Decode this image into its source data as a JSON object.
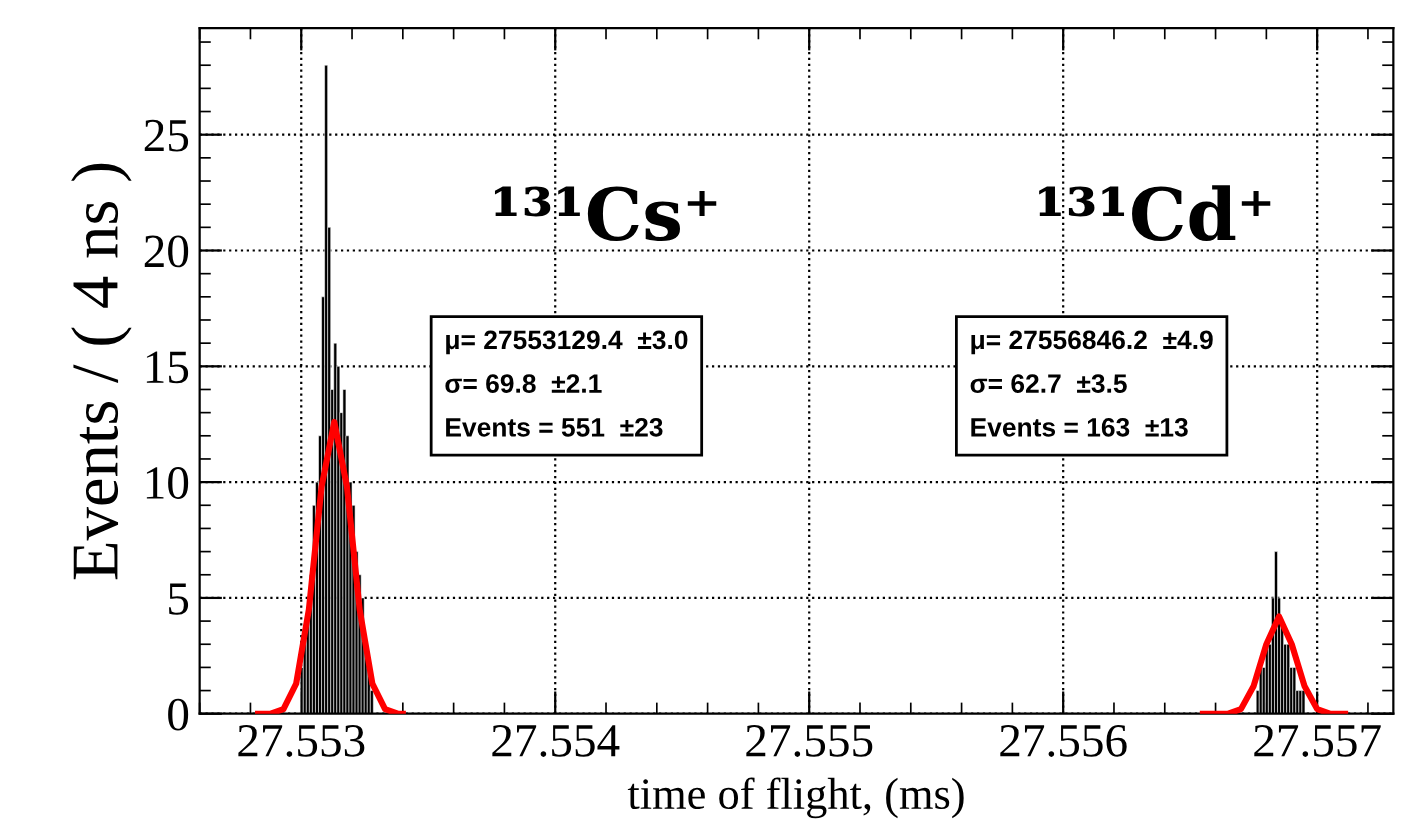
{
  "chart_data": {
    "type": "histogram",
    "xlabel": "time of flight, (ms)",
    "ylabel": "Events / ( 4 ns )",
    "xlim": [
      27.5526,
      27.5573
    ],
    "ylim": [
      0,
      29.6
    ],
    "xticks": [
      27.553,
      27.554,
      27.555,
      27.556,
      27.557
    ],
    "yticks": [
      0,
      5,
      10,
      15,
      20,
      25
    ],
    "grid": true,
    "legend": false,
    "annotations": [
      "¹³¹Cs⁺",
      "¹³¹Cd⁺",
      "μ= 27553129.4  ±3.0",
      "σ= 69.8  ±2.1",
      "Events = 551  ±23",
      "μ= 27556846.2  ±4.9",
      "σ= 62.7  ±3.5",
      "Events = 163  ±13"
    ],
    "series": [
      {
        "type": "histogram",
        "color": "#000000",
        "bins": [
          27.552996,
          27.553008,
          27.55302,
          27.553032,
          27.553044,
          27.553056,
          27.553068,
          27.55308,
          27.553092,
          27.553104,
          27.553116,
          27.553128,
          27.55314,
          27.553152,
          27.553164,
          27.553176,
          27.553188,
          27.5532,
          27.553212,
          27.553224,
          27.553236,
          27.553248,
          27.55326,
          27.553272,
          27.553284
        ],
        "values": [
          2,
          3,
          4,
          6,
          9,
          10,
          12,
          18,
          28,
          21,
          14,
          16,
          15,
          13,
          14,
          12,
          10,
          9,
          7,
          6,
          5,
          3,
          2,
          1
        ]
      },
      {
        "type": "histogram",
        "color": "#000000",
        "bins": [
          27.55676,
          27.556772,
          27.556784,
          27.556796,
          27.556808,
          27.55682,
          27.556832,
          27.556844,
          27.556856,
          27.556868,
          27.55688,
          27.556892,
          27.556904,
          27.556916,
          27.556928,
          27.55694,
          27.556952
        ],
        "values": [
          1,
          2,
          2,
          3,
          3,
          5,
          7,
          5,
          4,
          3,
          3,
          2,
          2,
          1,
          1,
          1
        ]
      },
      {
        "type": "line",
        "color": "#ff0000",
        "x": [
          27.55283,
          27.55288,
          27.55293,
          27.55298,
          27.55303,
          27.55308,
          27.55313,
          27.55318,
          27.55323,
          27.55328,
          27.55333,
          27.55338,
          27.5534
        ],
        "values": [
          0,
          0,
          0.2,
          1.3,
          4.5,
          9.8,
          12.6,
          9.8,
          4.5,
          1.3,
          0.2,
          0,
          0
        ]
      },
      {
        "type": "line",
        "color": "#ff0000",
        "x": [
          27.55655,
          27.55665,
          27.5567,
          27.55675,
          27.5568,
          27.55685,
          27.5569,
          27.55695,
          27.557,
          27.55705,
          27.55711
        ],
        "values": [
          0,
          0,
          0.2,
          1.2,
          3.0,
          4.2,
          3.0,
          1.2,
          0.2,
          0,
          0
        ]
      }
    ]
  }
}
